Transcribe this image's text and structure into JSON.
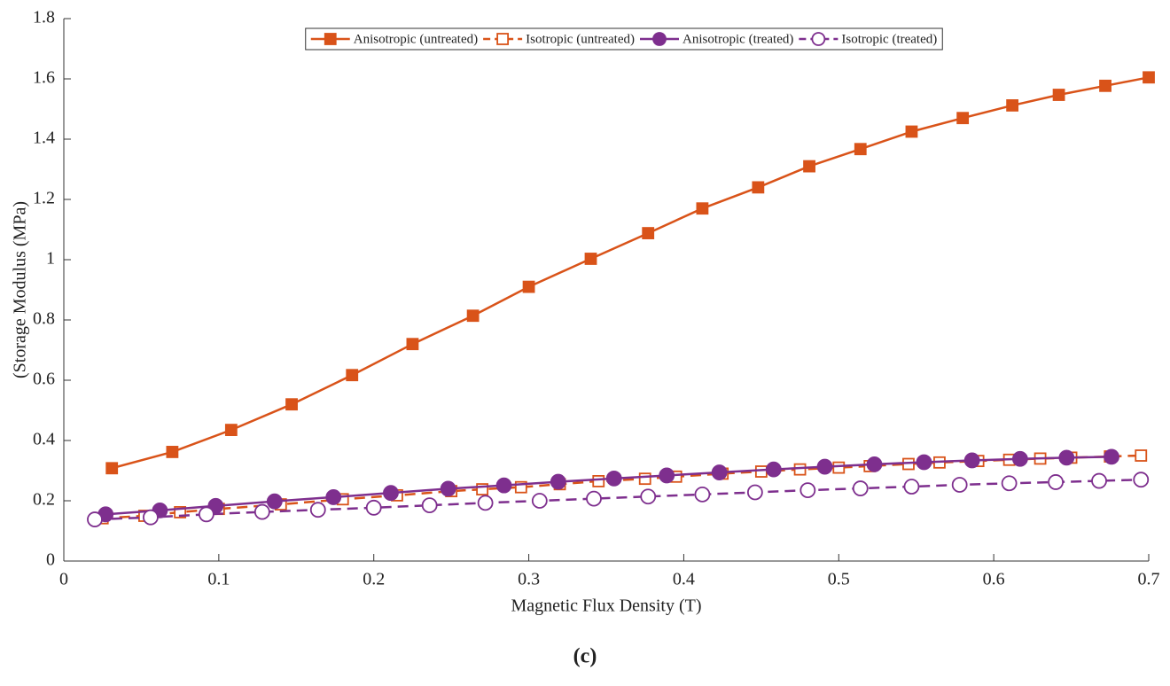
{
  "chart_data": {
    "type": "line",
    "xlabel": "Magnetic Flux Density (T)",
    "ylabel": "(Storage Modulus (MPa)",
    "caption": "(c)",
    "xlim": [
      0,
      0.7
    ],
    "xticks": [
      0,
      0.1,
      0.2,
      0.3,
      0.4,
      0.5,
      0.6,
      0.7
    ],
    "ylim": [
      0,
      1.8
    ],
    "yticks": [
      0,
      0.2,
      0.4,
      0.6,
      0.8,
      1,
      1.2,
      1.4,
      1.6,
      1.8
    ],
    "legend": "top",
    "series": [
      {
        "name": "Anisotropic (untreated)",
        "color": "#d95319",
        "marker": "square",
        "filled": true,
        "dashed": false,
        "x": [
          0.031,
          0.07,
          0.108,
          0.147,
          0.186,
          0.225,
          0.264,
          0.3,
          0.34,
          0.377,
          0.412,
          0.448,
          0.481,
          0.514,
          0.547,
          0.58,
          0.612,
          0.642,
          0.672,
          0.7
        ],
        "values": [
          0.308,
          0.362,
          0.435,
          0.52,
          0.617,
          0.72,
          0.814,
          0.91,
          1.003,
          1.088,
          1.17,
          1.24,
          1.31,
          1.367,
          1.425,
          1.47,
          1.512,
          1.547,
          1.577,
          1.605
        ]
      },
      {
        "name": "Isotropic (untreated)",
        "color": "#d95319",
        "marker": "square",
        "filled": false,
        "dashed": true,
        "x": [
          0.025,
          0.052,
          0.075,
          0.1,
          0.14,
          0.18,
          0.215,
          0.25,
          0.27,
          0.295,
          0.32,
          0.345,
          0.375,
          0.395,
          0.425,
          0.45,
          0.475,
          0.5,
          0.52,
          0.545,
          0.565,
          0.59,
          0.61,
          0.63,
          0.65,
          0.675,
          0.695
        ],
        "values": [
          0.142,
          0.15,
          0.162,
          0.173,
          0.188,
          0.205,
          0.218,
          0.232,
          0.238,
          0.245,
          0.255,
          0.265,
          0.273,
          0.28,
          0.29,
          0.297,
          0.304,
          0.31,
          0.315,
          0.322,
          0.327,
          0.332,
          0.336,
          0.34,
          0.343,
          0.347,
          0.35
        ]
      },
      {
        "name": "Anisotropic (treated)",
        "color": "#7e2f8e",
        "marker": "circle",
        "filled": true,
        "dashed": false,
        "x": [
          0.027,
          0.062,
          0.098,
          0.136,
          0.174,
          0.211,
          0.248,
          0.284,
          0.319,
          0.355,
          0.389,
          0.423,
          0.458,
          0.491,
          0.523,
          0.555,
          0.586,
          0.617,
          0.647,
          0.676
        ],
        "values": [
          0.155,
          0.168,
          0.183,
          0.198,
          0.212,
          0.226,
          0.24,
          0.251,
          0.263,
          0.274,
          0.284,
          0.294,
          0.304,
          0.313,
          0.321,
          0.328,
          0.334,
          0.339,
          0.343,
          0.346
        ]
      },
      {
        "name": "Isotropic (treated)",
        "color": "#7e2f8e",
        "marker": "circle",
        "filled": false,
        "dashed": true,
        "x": [
          0.02,
          0.056,
          0.092,
          0.128,
          0.164,
          0.2,
          0.236,
          0.272,
          0.307,
          0.342,
          0.377,
          0.412,
          0.446,
          0.48,
          0.514,
          0.547,
          0.578,
          0.61,
          0.64,
          0.668,
          0.695
        ],
        "values": [
          0.138,
          0.145,
          0.155,
          0.163,
          0.17,
          0.177,
          0.185,
          0.193,
          0.2,
          0.207,
          0.214,
          0.221,
          0.228,
          0.235,
          0.241,
          0.247,
          0.253,
          0.258,
          0.262,
          0.266,
          0.27
        ]
      }
    ]
  }
}
